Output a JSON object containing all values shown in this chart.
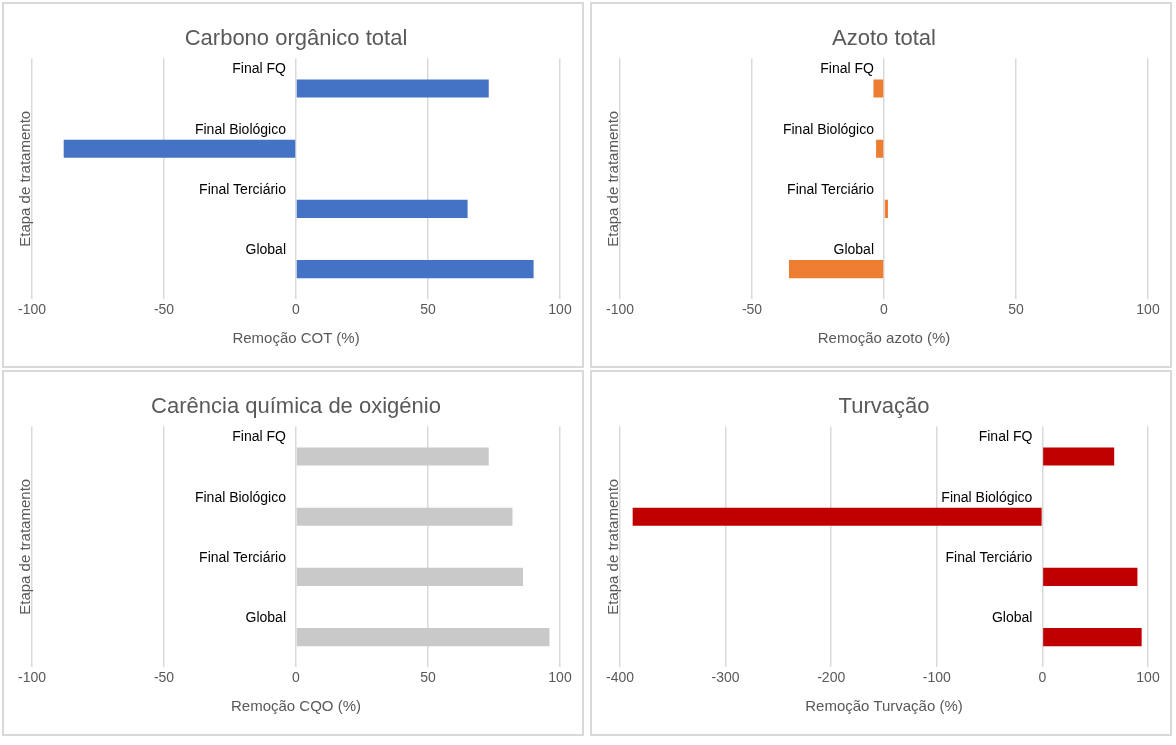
{
  "chart_data": [
    {
      "type": "bar",
      "orientation": "horizontal",
      "title": "Carbono orgânico total",
      "xlabel": "Remoção COT (%)",
      "ylabel": "Etapa de tratamento",
      "categories": [
        "Final FQ",
        "Final Biológico",
        "Final Terciário",
        "Global"
      ],
      "values": [
        73,
        -88,
        65,
        90
      ],
      "color": "#4472c4",
      "xlim": [
        -100,
        100
      ],
      "xticks": [
        -100,
        -50,
        0,
        50,
        100
      ],
      "grid": "x"
    },
    {
      "type": "bar",
      "orientation": "horizontal",
      "title": "Azoto total",
      "xlabel": "Remoção azoto (%)",
      "ylabel": "Etapa de tratamento",
      "categories": [
        "Final FQ",
        "Final Biológico",
        "Final Terciário",
        "Global"
      ],
      "values": [
        -4,
        -3,
        1.5,
        -36
      ],
      "color": "#ed7d31",
      "xlim": [
        -100,
        100
      ],
      "xticks": [
        -100,
        -50,
        0,
        50,
        100
      ],
      "grid": "x"
    },
    {
      "type": "bar",
      "orientation": "horizontal",
      "title": "Carência química de oxigénio",
      "xlabel": "Remoção CQO (%)",
      "ylabel": "Etapa de tratamento",
      "categories": [
        "Final FQ",
        "Final Biológico",
        "Final Terciário",
        "Global"
      ],
      "values": [
        73,
        82,
        86,
        96
      ],
      "color": "#c9c9c9",
      "xlim": [
        -100,
        100
      ],
      "xticks": [
        -100,
        -50,
        0,
        50,
        100
      ],
      "grid": "x"
    },
    {
      "type": "bar",
      "orientation": "horizontal",
      "title": "Turvação",
      "xlabel": "Remoção Turvação (%)",
      "ylabel": "Etapa de tratamento",
      "categories": [
        "Final FQ",
        "Final Biológico",
        "Final Terciário",
        "Global"
      ],
      "values": [
        68,
        -388,
        90,
        94
      ],
      "color": "#c00000",
      "xlim": [
        -400,
        100
      ],
      "xticks": [
        -400,
        -300,
        -200,
        -100,
        0,
        100
      ],
      "grid": "x"
    }
  ]
}
